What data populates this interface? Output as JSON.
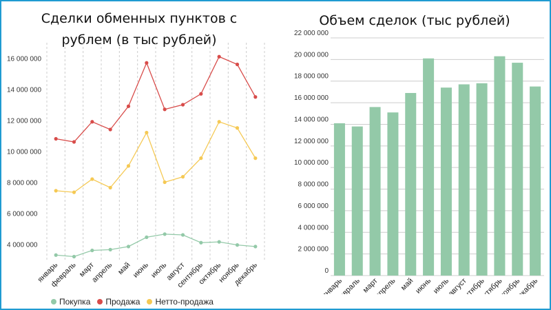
{
  "colors": {
    "purchase": "#93c9a8",
    "sale": "#d84c4a",
    "net": "#f5c954",
    "bar": "#93c9a8",
    "grid": "#cccccc",
    "frame": "#1f9bd1"
  },
  "chart_data": [
    {
      "type": "line",
      "title": "Сделки обменных пунктов с рублем (в тыс рублей)",
      "categories": [
        "январь",
        "февраль",
        "март",
        "апрель",
        "май",
        "июнь",
        "июль",
        "август",
        "сентябрь",
        "октябрь",
        "ноябрь",
        "декабрь"
      ],
      "series": [
        {
          "name": "Покупка",
          "color": "#93c9a8",
          "values": [
            3300000,
            3200000,
            3600000,
            3650000,
            3850000,
            4450000,
            4650000,
            4600000,
            4100000,
            4150000,
            3950000,
            3850000
          ]
        },
        {
          "name": "Продажа",
          "color": "#d84c4a",
          "values": [
            10800000,
            10600000,
            11900000,
            11400000,
            12900000,
            15700000,
            12700000,
            13000000,
            13700000,
            16100000,
            15600000,
            13500000
          ]
        },
        {
          "name": "Нетто-продажа",
          "color": "#f5c954",
          "values": [
            7450000,
            7350000,
            8200000,
            7650000,
            9050000,
            11200000,
            8000000,
            8350000,
            9550000,
            11900000,
            11500000,
            9550000
          ]
        }
      ],
      "ylim": [
        3000000,
        17000000
      ],
      "yticks": [
        4000000,
        6000000,
        8000000,
        10000000,
        12000000,
        14000000,
        16000000
      ],
      "ytick_labels": [
        "4 000 000",
        "6 000 000",
        "8 000 000",
        "10 000 000",
        "12 000 000",
        "14 000 000",
        "16 000 000"
      ],
      "grid": "vertical-dashed",
      "legend": "bottom"
    },
    {
      "type": "bar",
      "title": "Объем сделок (тыс рублей)",
      "categories": [
        "январь",
        "февраль",
        "март",
        "апрель",
        "май",
        "июнь",
        "июль",
        "август",
        "сентябрь",
        "октябрь",
        "ноябрь",
        "декабрь"
      ],
      "values": [
        14100000,
        13800000,
        15600000,
        15100000,
        16900000,
        20100000,
        17400000,
        17700000,
        17800000,
        20300000,
        19700000,
        17500000
      ],
      "ylim": [
        0,
        22000000
      ],
      "yticks": [
        0,
        2000000,
        4000000,
        6000000,
        8000000,
        10000000,
        12000000,
        14000000,
        16000000,
        18000000,
        20000000,
        22000000
      ],
      "ytick_labels": [
        "0",
        "2 000 000",
        "4 000 000",
        "6 000 000",
        "8 000 000",
        "10 000 000",
        "12 000 000",
        "14 000 000",
        "16 000 000",
        "18 000 000",
        "20 000 000",
        "22 000 000"
      ],
      "grid": "horizontal",
      "color": "#93c9a8"
    }
  ]
}
